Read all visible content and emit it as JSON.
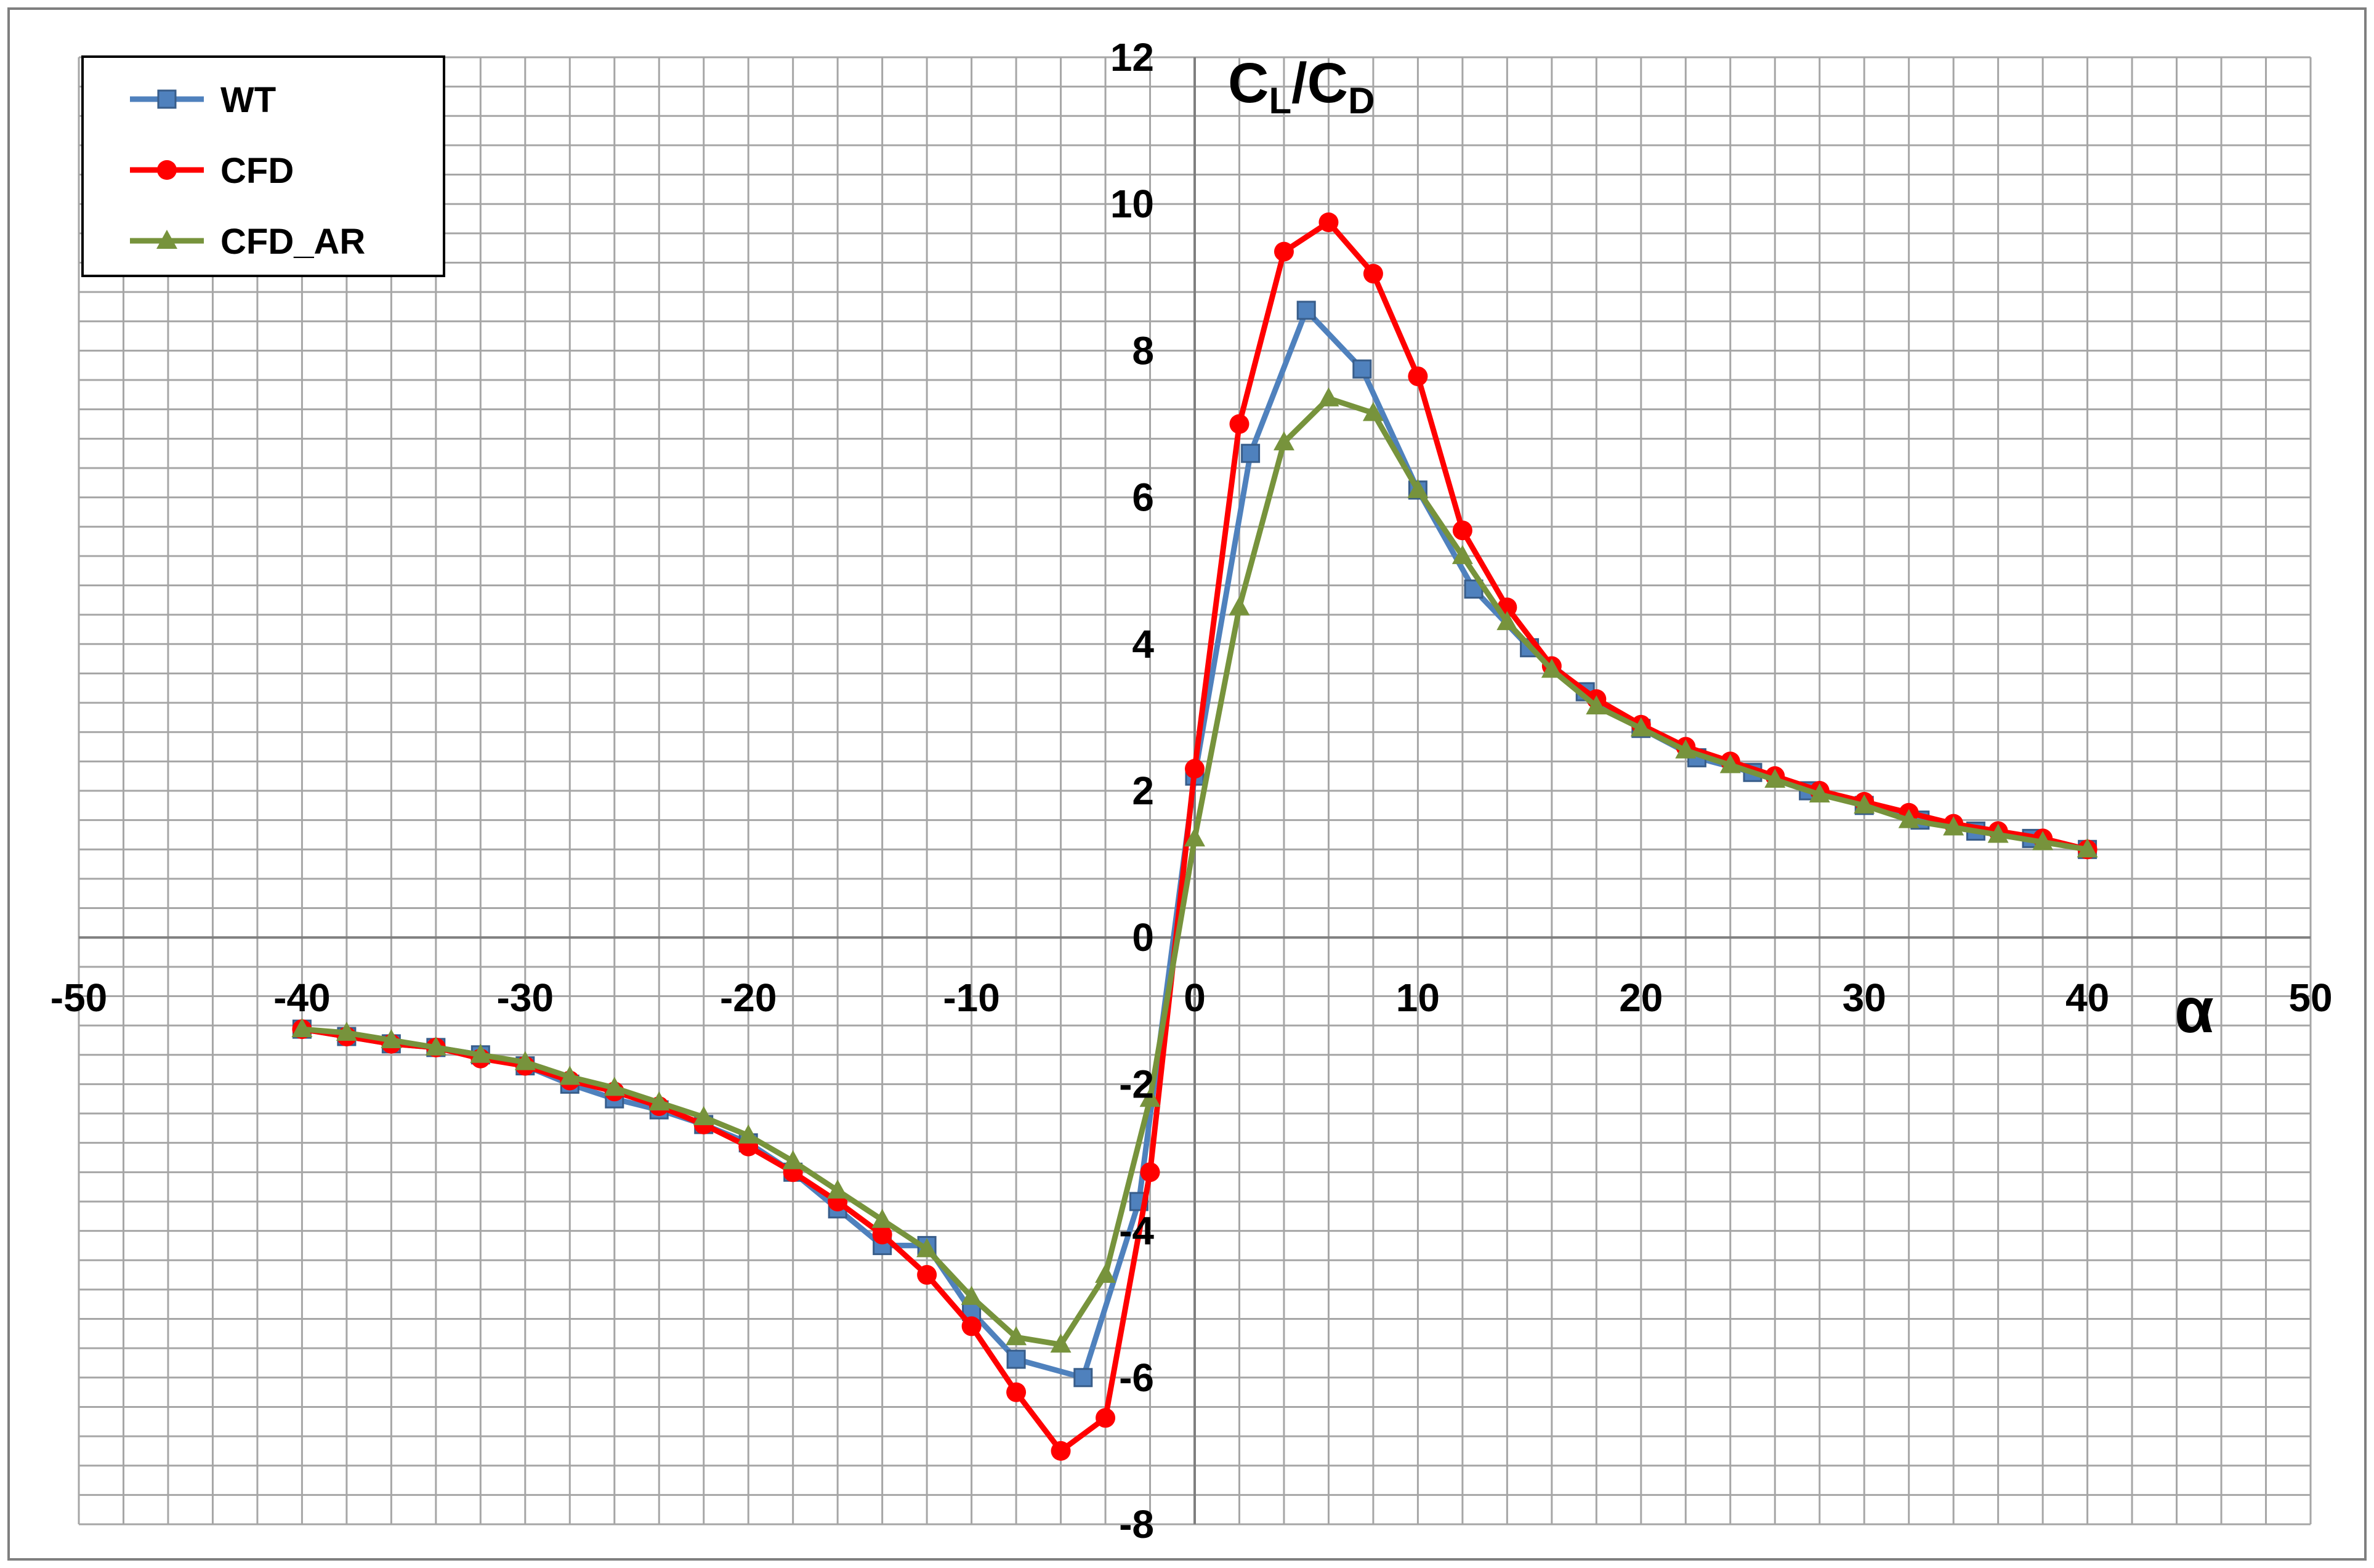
{
  "chart_data": {
    "type": "line",
    "title": "",
    "xlabel": "α",
    "ylabel": {
      "main": "C",
      "sub1": "L",
      "slash": "/",
      "main2": "C",
      "sub2": "D"
    },
    "xlim": [
      -50,
      50
    ],
    "ylim": [
      -8,
      12
    ],
    "x_major_step": 10,
    "x_minor_step": 2,
    "y_major_step": 2,
    "y_minor_step": 0.4,
    "grid": true,
    "legend_position": "top-left",
    "x_ticks": [
      -50,
      -40,
      -30,
      -20,
      -10,
      0,
      10,
      20,
      30,
      40,
      50
    ],
    "y_ticks": [
      -8,
      -6,
      -4,
      -2,
      0,
      2,
      4,
      6,
      8,
      10,
      12
    ],
    "series": [
      {
        "name": "WT",
        "color": "#4f81bd",
        "marker": "square",
        "x": [
          -40,
          -38,
          -36,
          -34,
          -32,
          -30,
          -28,
          -26,
          -24,
          -22,
          -20,
          -18,
          -16,
          -14,
          -12,
          -10,
          -8,
          -5,
          -2.5,
          0,
          2.5,
          5,
          7.5,
          10,
          12.5,
          15,
          17.5,
          20,
          22.5,
          25,
          27.5,
          30,
          32.5,
          35,
          37.5,
          40
        ],
        "y": [
          -1.25,
          -1.35,
          -1.45,
          -1.5,
          -1.6,
          -1.75,
          -2.0,
          -2.2,
          -2.35,
          -2.55,
          -2.8,
          -3.2,
          -3.7,
          -4.2,
          -4.2,
          -5.1,
          -5.75,
          -6.0,
          -3.6,
          2.2,
          6.6,
          8.55,
          7.75,
          6.1,
          4.75,
          3.95,
          3.35,
          2.85,
          2.45,
          2.25,
          2.0,
          1.8,
          1.6,
          1.45,
          1.35,
          1.2
        ]
      },
      {
        "name": "CFD",
        "color": "#ff0000",
        "marker": "circle",
        "x": [
          -40,
          -38,
          -36,
          -34,
          -32,
          -30,
          -28,
          -26,
          -24,
          -22,
          -20,
          -18,
          -16,
          -14,
          -12,
          -10,
          -8,
          -6,
          -4,
          -2,
          0,
          2,
          4,
          6,
          8,
          10,
          12,
          14,
          16,
          18,
          20,
          22,
          24,
          26,
          28,
          30,
          32,
          34,
          36,
          38,
          40
        ],
        "y": [
          -1.25,
          -1.35,
          -1.45,
          -1.5,
          -1.65,
          -1.75,
          -1.95,
          -2.1,
          -2.3,
          -2.55,
          -2.85,
          -3.2,
          -3.6,
          -4.05,
          -4.6,
          -5.3,
          -6.2,
          -7.0,
          -6.55,
          -3.2,
          2.3,
          7.0,
          9.35,
          9.75,
          9.05,
          7.65,
          5.55,
          4.5,
          3.7,
          3.25,
          2.9,
          2.6,
          2.4,
          2.2,
          2.0,
          1.85,
          1.7,
          1.55,
          1.45,
          1.35,
          1.2
        ]
      },
      {
        "name": "CFD_AR",
        "color": "#77933c",
        "marker": "triangle",
        "x": [
          -40,
          -38,
          -36,
          -34,
          -32,
          -30,
          -28,
          -26,
          -24,
          -22,
          -20,
          -18,
          -16,
          -14,
          -12,
          -10,
          -8,
          -6,
          -4,
          -2,
          0,
          2,
          4,
          6,
          8,
          10,
          12,
          14,
          16,
          18,
          20,
          22,
          24,
          26,
          28,
          30,
          32,
          34,
          36,
          38,
          40
        ],
        "y": [
          -1.25,
          -1.3,
          -1.4,
          -1.5,
          -1.6,
          -1.7,
          -1.9,
          -2.05,
          -2.25,
          -2.45,
          -2.7,
          -3.05,
          -3.45,
          -3.85,
          -4.25,
          -4.9,
          -5.45,
          -5.55,
          -4.6,
          -2.2,
          1.35,
          4.5,
          6.75,
          7.35,
          7.15,
          6.1,
          5.2,
          4.3,
          3.65,
          3.15,
          2.85,
          2.55,
          2.35,
          2.15,
          1.95,
          1.8,
          1.6,
          1.5,
          1.4,
          1.3,
          1.2
        ]
      }
    ]
  }
}
